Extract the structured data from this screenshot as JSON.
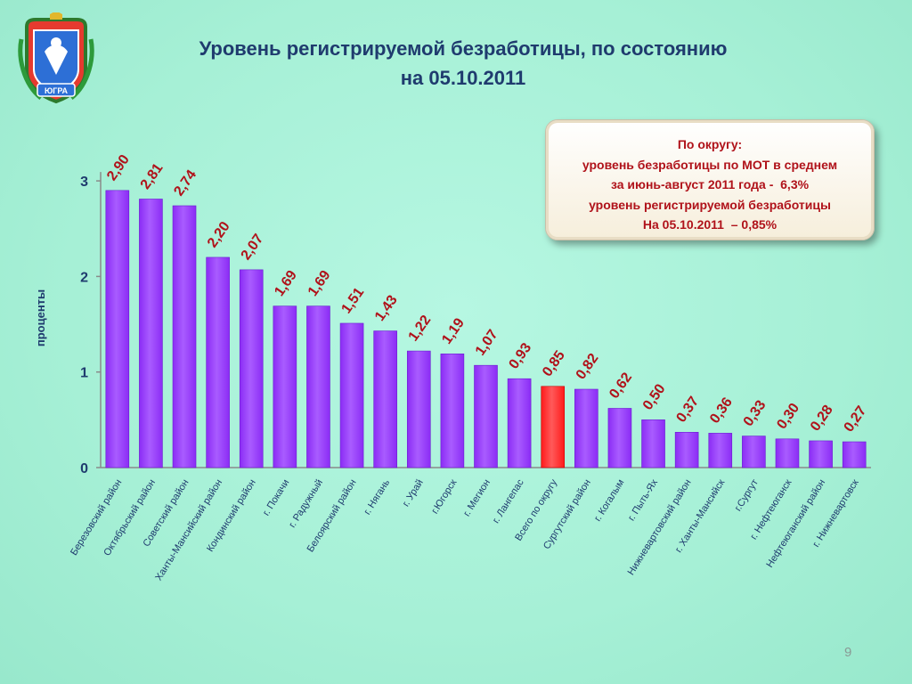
{
  "page": {
    "title_line1": "Уровень регистрируемой безработицы, по состоянию",
    "title_line2": "на 05.10.2011",
    "page_number": "9",
    "emblem_text": "ЮГРА"
  },
  "info_box": {
    "lines": [
      "По округу:",
      "уровень безработицы по МОТ в среднем",
      "за июнь-август 2011 года -  6,3%",
      "уровень регистрируемой безработицы",
      "На 05.10.2011  – 0,85%"
    ]
  },
  "chart_data": {
    "type": "bar",
    "ylabel": "проценты",
    "ylim": [
      0,
      3
    ],
    "yticks": [
      0,
      1,
      2,
      3
    ],
    "grid": false,
    "categories": [
      "Березовский район",
      "Октябрьский район",
      "Советский район",
      "Ханты-Мансийский район",
      "Кондинский район",
      "г. Покачи",
      "г. Радужный",
      "Белоярский район",
      "г. Нягань",
      "г. Урай",
      "г.Югорск",
      "г. Мегион",
      "г. Лангепас",
      "Всего по округу",
      "Сургутский район",
      "г. Когалым",
      "г. Пыть-Ях",
      "Нижневартовский район",
      "г. Ханты-Мансийск",
      "г.Сургут",
      "г. Нефтеюганск",
      "Нефтеюганский район",
      "г. Нижневартовск"
    ],
    "values": [
      2.9,
      2.81,
      2.74,
      2.2,
      2.07,
      1.69,
      1.69,
      1.51,
      1.43,
      1.22,
      1.19,
      1.07,
      0.93,
      0.85,
      0.82,
      0.62,
      0.5,
      0.37,
      0.36,
      0.33,
      0.3,
      0.28,
      0.27
    ],
    "value_labels": [
      "2,90",
      "2,81",
      "2,74",
      "2,20",
      "2,07",
      "1,69",
      "1,69",
      "1,51",
      "1,43",
      "1,22",
      "1,19",
      "1,07",
      "0,93",
      "0,85",
      "0,82",
      "0,62",
      "0,50",
      "0,37",
      "0,36",
      "0,33",
      "0,30",
      "0,28",
      "0,27"
    ],
    "highlight_index": 13,
    "colors": {
      "bar": "#8b2cf5",
      "highlight": "#ff1a1a",
      "value_label": "#b0121a",
      "axis": "#1f3b6e"
    }
  }
}
